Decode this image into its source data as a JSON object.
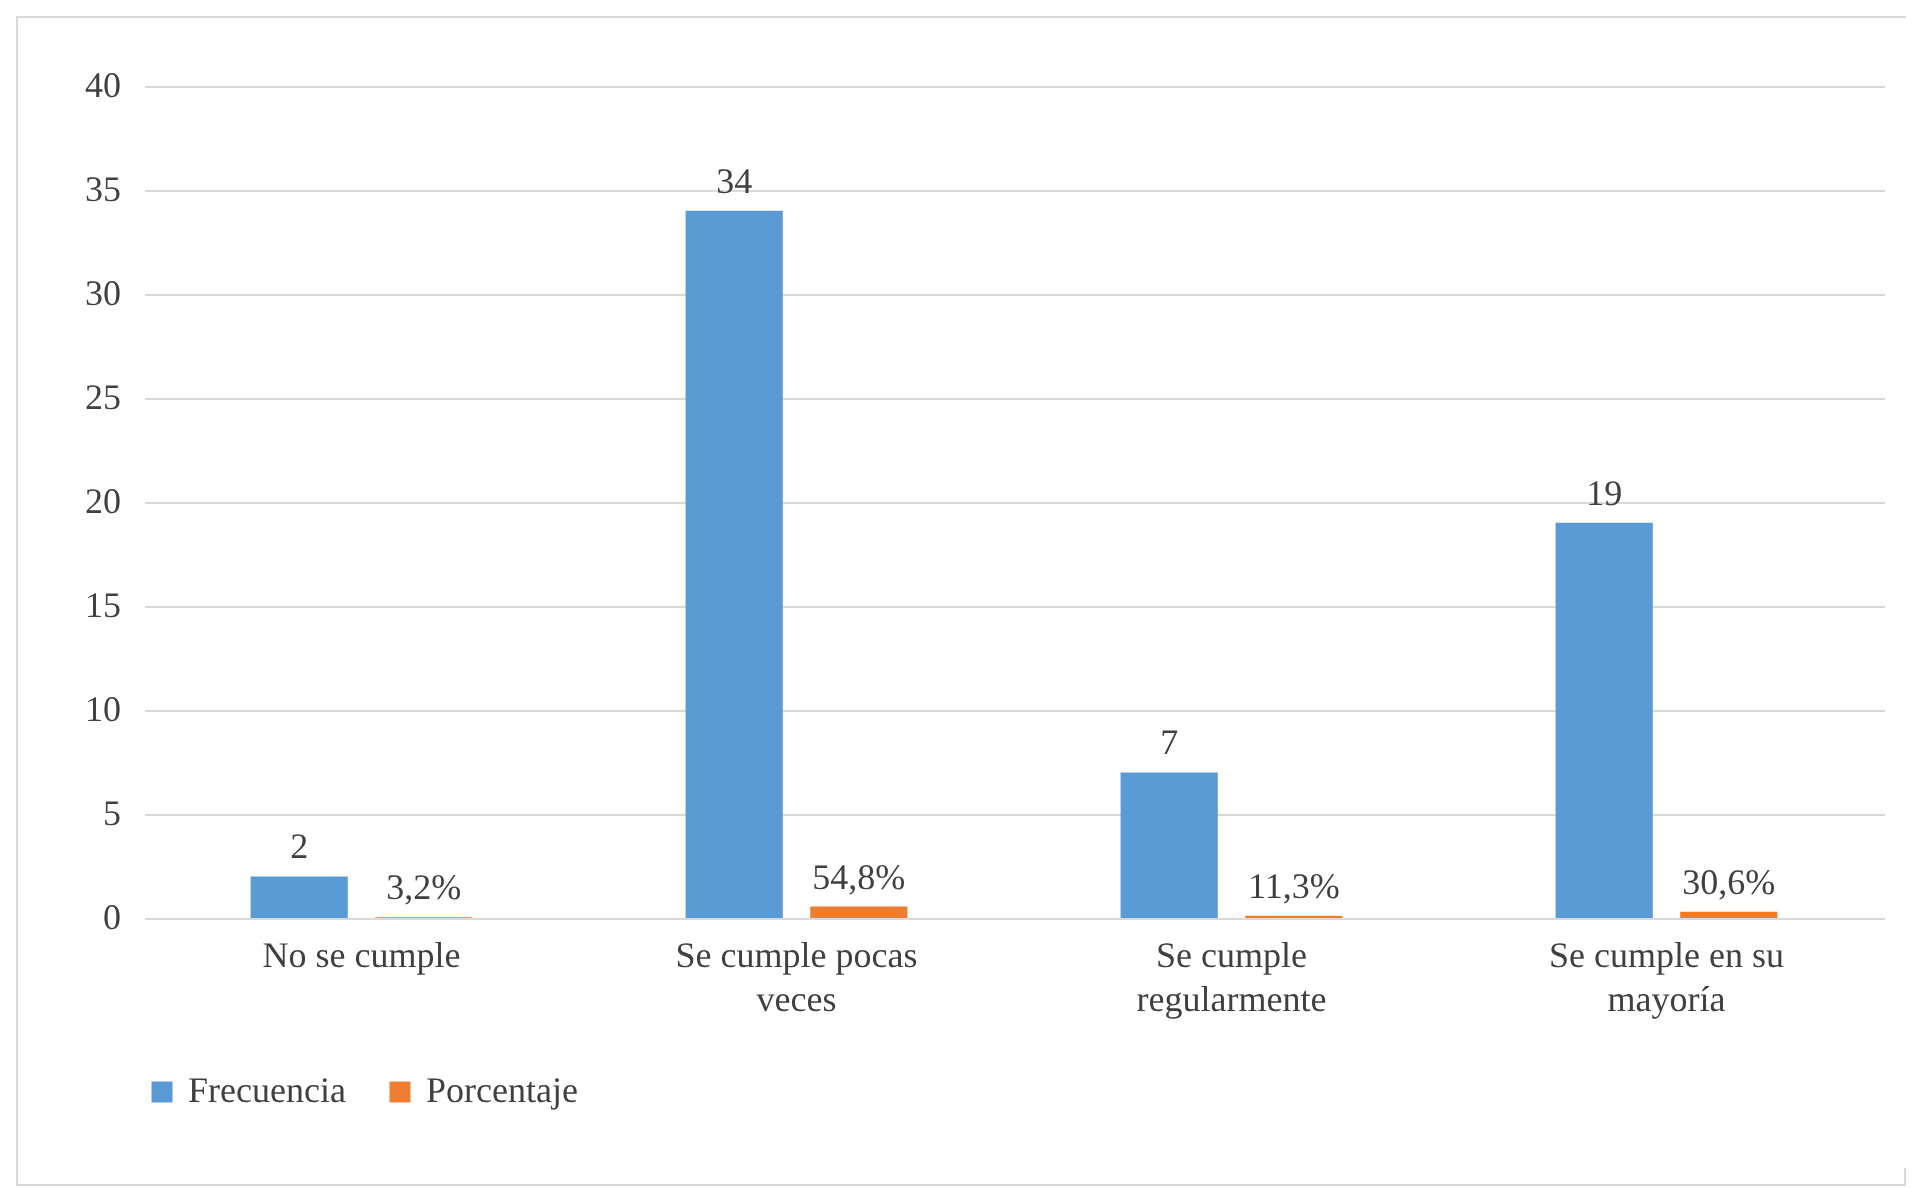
{
  "chart_data": {
    "type": "bar",
    "categories": [
      "No se cumple",
      "Se cumple pocas veces",
      "Se cumple regularmente",
      "Se cumple en su mayoría"
    ],
    "series": [
      {
        "name": "Frecuencia",
        "color": "#5b9bd5",
        "values": [
          2,
          34,
          7,
          19
        ],
        "value_labels": [
          "2",
          "34",
          "7",
          "19"
        ]
      },
      {
        "name": "Porcentaje",
        "color": "#ed7d31",
        "values": [
          0.032,
          0.548,
          0.113,
          0.306
        ],
        "value_labels": [
          "3,2%",
          "54,8%",
          "11,3%",
          "30,6%"
        ]
      }
    ],
    "ylim": [
      0,
      40
    ],
    "yticks": [
      0,
      5,
      10,
      15,
      20,
      25,
      30,
      35,
      40
    ],
    "grid": "y",
    "legend": "bottom"
  }
}
